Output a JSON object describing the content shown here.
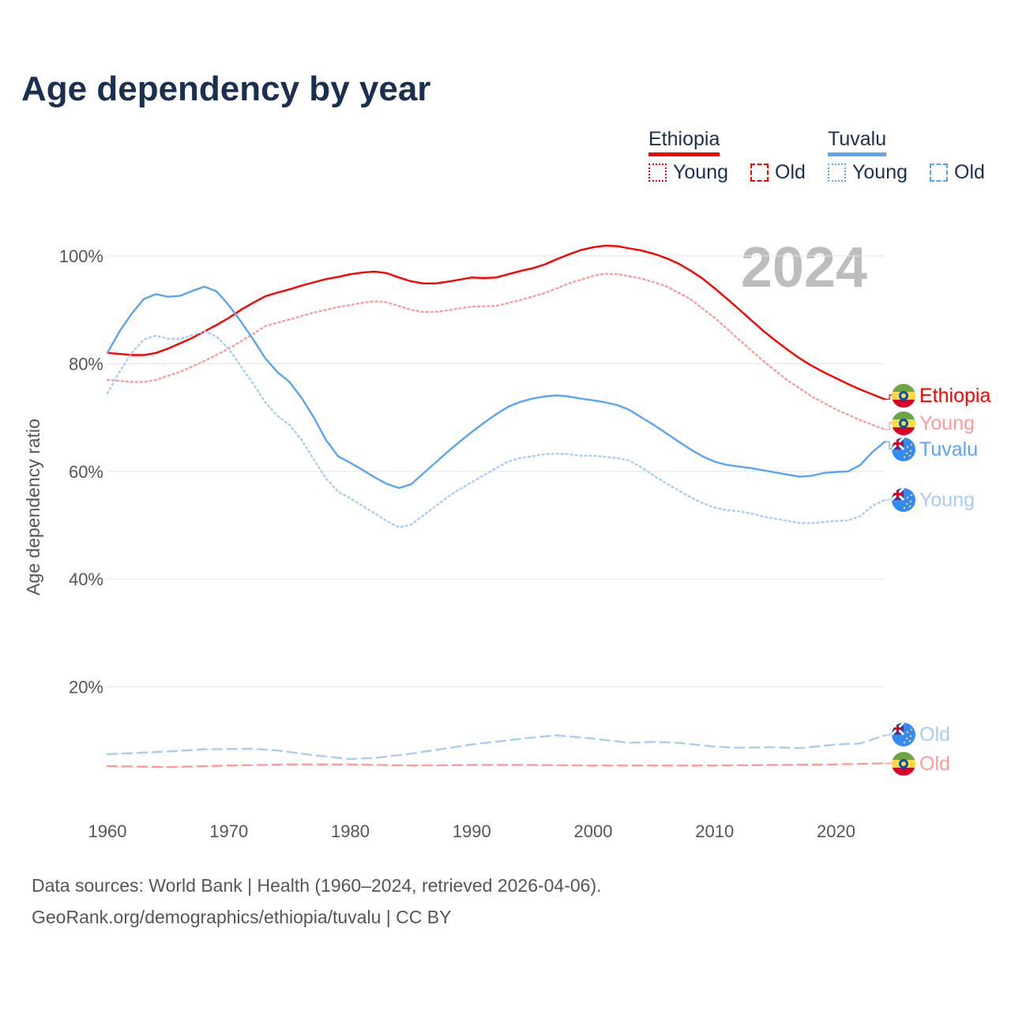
{
  "title": "Age dependency by year",
  "legend": {
    "countries": [
      {
        "name": "Ethiopia",
        "color": "#ff0000",
        "young_color": "#ff0000",
        "items": [
          "Young",
          "Old"
        ]
      },
      {
        "name": "Tuvalu",
        "color": "#5ba4ee",
        "young_color": "#5ba4ee",
        "items": [
          "Young",
          "Old"
        ]
      }
    ]
  },
  "year_watermark": "2024",
  "sources": {
    "line1": "Data sources: World Bank | Health (1960–2024, retrieved 2026-04-06).",
    "line2": "GeoRank.org/demographics/ethiopia/tuvalu | CC BY"
  },
  "chart_data": {
    "type": "line",
    "title": "Age dependency by year",
    "xlabel": "",
    "ylabel": "Age dependency ratio",
    "xlim": [
      1960,
      2024
    ],
    "ylim": [
      0,
      105
    ],
    "x_ticks": [
      "1960",
      "1970",
      "1980",
      "1990",
      "2000",
      "2010",
      "2020"
    ],
    "y_ticks": [
      "20%",
      "40%",
      "60%",
      "80%",
      "100%"
    ],
    "grid": true,
    "legend_position": "top-right",
    "series": [
      {
        "name": "Ethiopia",
        "label": "Ethiopia",
        "country": "ethiopia",
        "style": "solid",
        "color": "#ff0000",
        "points": [
          [
            1960,
            82
          ],
          [
            1961,
            81.8
          ],
          [
            1962,
            81.6
          ],
          [
            1963,
            81.6
          ],
          [
            1964,
            82
          ],
          [
            1965,
            82.8
          ],
          [
            1966,
            83.8
          ],
          [
            1967,
            84.8
          ],
          [
            1968,
            86
          ],
          [
            1969,
            87.2
          ],
          [
            1970,
            88.5
          ],
          [
            1971,
            90
          ],
          [
            1972,
            91.3
          ],
          [
            1973,
            92.5
          ],
          [
            1974,
            93.2
          ],
          [
            1975,
            93.8
          ],
          [
            1976,
            94.5
          ],
          [
            1977,
            95.1
          ],
          [
            1978,
            95.7
          ],
          [
            1979,
            96.1
          ],
          [
            1980,
            96.6
          ],
          [
            1981,
            96.9
          ],
          [
            1982,
            97.1
          ],
          [
            1983,
            96.8
          ],
          [
            1984,
            96
          ],
          [
            1985,
            95.3
          ],
          [
            1986,
            94.9
          ],
          [
            1987,
            94.9
          ],
          [
            1988,
            95.2
          ],
          [
            1989,
            95.6
          ],
          [
            1990,
            96
          ],
          [
            1991,
            95.9
          ],
          [
            1992,
            96
          ],
          [
            1993,
            96.6
          ],
          [
            1994,
            97.2
          ],
          [
            1995,
            97.7
          ],
          [
            1996,
            98.4
          ],
          [
            1997,
            99.4
          ],
          [
            1998,
            100.3
          ],
          [
            1999,
            101.1
          ],
          [
            2000,
            101.6
          ],
          [
            2001,
            101.9
          ],
          [
            2002,
            101.8
          ],
          [
            2003,
            101.4
          ],
          [
            2004,
            101
          ],
          [
            2005,
            100.4
          ],
          [
            2006,
            99.6
          ],
          [
            2007,
            98.6
          ],
          [
            2008,
            97.3
          ],
          [
            2009,
            95.8
          ],
          [
            2010,
            94
          ],
          [
            2011,
            92.1
          ],
          [
            2012,
            90.1
          ],
          [
            2013,
            88.1
          ],
          [
            2014,
            86.1
          ],
          [
            2015,
            84.3
          ],
          [
            2016,
            82.6
          ],
          [
            2017,
            81
          ],
          [
            2018,
            79.6
          ],
          [
            2019,
            78.4
          ],
          [
            2020,
            77.3
          ],
          [
            2021,
            76.2
          ],
          [
            2022,
            75.2
          ],
          [
            2023,
            74.3
          ],
          [
            2024,
            73.4
          ]
        ]
      },
      {
        "name": "Ethiopia Young",
        "label": "Young",
        "country": "ethiopia",
        "style": "dotted",
        "color": "#ff9a9a",
        "points": [
          [
            1960,
            77
          ],
          [
            1962,
            76.6
          ],
          [
            1963,
            76.6
          ],
          [
            1964,
            77
          ],
          [
            1966,
            78.5
          ],
          [
            1968,
            80.5
          ],
          [
            1970,
            82.8
          ],
          [
            1972,
            85.5
          ],
          [
            1973,
            87
          ],
          [
            1975,
            88.2
          ],
          [
            1977,
            89.5
          ],
          [
            1979,
            90.5
          ],
          [
            1981,
            91.3
          ],
          [
            1982,
            91.6
          ],
          [
            1983,
            91.4
          ],
          [
            1984,
            90.7
          ],
          [
            1985,
            90
          ],
          [
            1986,
            89.6
          ],
          [
            1987,
            89.6
          ],
          [
            1988,
            89.9
          ],
          [
            1990,
            90.6
          ],
          [
            1992,
            90.7
          ],
          [
            1994,
            91.8
          ],
          [
            1996,
            93.1
          ],
          [
            1998,
            94.9
          ],
          [
            2000,
            96.3
          ],
          [
            2001,
            96.7
          ],
          [
            2002,
            96.6
          ],
          [
            2004,
            95.8
          ],
          [
            2006,
            94.4
          ],
          [
            2008,
            92
          ],
          [
            2010,
            88.5
          ],
          [
            2012,
            84.5
          ],
          [
            2014,
            80.5
          ],
          [
            2016,
            76.9
          ],
          [
            2018,
            73.9
          ],
          [
            2020,
            71.5
          ],
          [
            2022,
            69.5
          ],
          [
            2024,
            67.8
          ]
        ]
      },
      {
        "name": "Tuvalu",
        "label": "Tuvalu",
        "country": "tuvalu",
        "style": "solid",
        "color": "#5ba4ee",
        "points": [
          [
            1960,
            82
          ],
          [
            1961,
            86
          ],
          [
            1962,
            89.3
          ],
          [
            1963,
            92
          ],
          [
            1964,
            92.9
          ],
          [
            1965,
            92.4
          ],
          [
            1966,
            92.6
          ],
          [
            1967,
            93.5
          ],
          [
            1968,
            94.3
          ],
          [
            1969,
            93.4
          ],
          [
            1970,
            90.8
          ],
          [
            1971,
            87.8
          ],
          [
            1972,
            84.5
          ],
          [
            1973,
            81
          ],
          [
            1974,
            78.4
          ],
          [
            1975,
            76.6
          ],
          [
            1976,
            73.6
          ],
          [
            1977,
            70
          ],
          [
            1978,
            65.8
          ],
          [
            1979,
            62.8
          ],
          [
            1980,
            61.6
          ],
          [
            1981,
            60.3
          ],
          [
            1982,
            58.9
          ],
          [
            1983,
            57.7
          ],
          [
            1984,
            56.9
          ],
          [
            1985,
            57.6
          ],
          [
            1986,
            59.6
          ],
          [
            1987,
            61.6
          ],
          [
            1988,
            63.6
          ],
          [
            1989,
            65.5
          ],
          [
            1990,
            67.3
          ],
          [
            1991,
            69
          ],
          [
            1992,
            70.6
          ],
          [
            1993,
            72
          ],
          [
            1994,
            72.9
          ],
          [
            1995,
            73.5
          ],
          [
            1996,
            73.9
          ],
          [
            1997,
            74.1
          ],
          [
            1998,
            73.9
          ],
          [
            1999,
            73.5
          ],
          [
            2000,
            73.2
          ],
          [
            2001,
            72.8
          ],
          [
            2002,
            72.3
          ],
          [
            2003,
            71.4
          ],
          [
            2004,
            70
          ],
          [
            2005,
            68.6
          ],
          [
            2006,
            67.1
          ],
          [
            2007,
            65.6
          ],
          [
            2008,
            64.1
          ],
          [
            2009,
            62.8
          ],
          [
            2010,
            61.8
          ],
          [
            2011,
            61.2
          ],
          [
            2012,
            60.9
          ],
          [
            2013,
            60.6
          ],
          [
            2014,
            60.2
          ],
          [
            2015,
            59.8
          ],
          [
            2016,
            59.4
          ],
          [
            2017,
            59
          ],
          [
            2018,
            59.2
          ],
          [
            2019,
            59.7
          ],
          [
            2020,
            59.9
          ],
          [
            2021,
            60
          ],
          [
            2022,
            61.2
          ],
          [
            2023,
            63.6
          ],
          [
            2024,
            65.5
          ]
        ]
      },
      {
        "name": "Tuvalu Young",
        "label": "Young",
        "country": "tuvalu",
        "style": "dotted",
        "color": "#a8cdf5",
        "points": [
          [
            1960,
            74.5
          ],
          [
            1961,
            78.5
          ],
          [
            1962,
            82
          ],
          [
            1963,
            84.5
          ],
          [
            1964,
            85.2
          ],
          [
            1965,
            84.6
          ],
          [
            1966,
            84.6
          ],
          [
            1967,
            85.3
          ],
          [
            1968,
            86
          ],
          [
            1969,
            85
          ],
          [
            1970,
            82.7
          ],
          [
            1971,
            79.5
          ],
          [
            1972,
            76.3
          ],
          [
            1973,
            72.8
          ],
          [
            1974,
            70.3
          ],
          [
            1975,
            68.6
          ],
          [
            1976,
            65.8
          ],
          [
            1977,
            62.2
          ],
          [
            1978,
            58.7
          ],
          [
            1979,
            56.2
          ],
          [
            1980,
            55
          ],
          [
            1981,
            53.6
          ],
          [
            1982,
            52.2
          ],
          [
            1983,
            50.8
          ],
          [
            1984,
            49.6
          ],
          [
            1985,
            50.1
          ],
          [
            1986,
            51.8
          ],
          [
            1987,
            53.5
          ],
          [
            1988,
            55.2
          ],
          [
            1989,
            56.7
          ],
          [
            1990,
            58
          ],
          [
            1991,
            59.3
          ],
          [
            1992,
            60.6
          ],
          [
            1993,
            61.8
          ],
          [
            1994,
            62.5
          ],
          [
            1995,
            62.8
          ],
          [
            1996,
            63.2
          ],
          [
            1997,
            63.3
          ],
          [
            1998,
            63.2
          ],
          [
            1999,
            62.9
          ],
          [
            2000,
            62.9
          ],
          [
            2001,
            62.7
          ],
          [
            2002,
            62.5
          ],
          [
            2003,
            62
          ],
          [
            2004,
            60.7
          ],
          [
            2005,
            59.2
          ],
          [
            2006,
            57.8
          ],
          [
            2007,
            56.5
          ],
          [
            2008,
            55.2
          ],
          [
            2009,
            54.1
          ],
          [
            2010,
            53.3
          ],
          [
            2011,
            52.8
          ],
          [
            2012,
            52.6
          ],
          [
            2013,
            52.2
          ],
          [
            2014,
            51.6
          ],
          [
            2015,
            51.2
          ],
          [
            2016,
            50.8
          ],
          [
            2017,
            50.4
          ],
          [
            2018,
            50.4
          ],
          [
            2019,
            50.6
          ],
          [
            2020,
            50.8
          ],
          [
            2021,
            50.9
          ],
          [
            2022,
            51.7
          ],
          [
            2023,
            53.6
          ],
          [
            2024,
            54.7
          ]
        ]
      },
      {
        "name": "Tuvalu Old",
        "label": "Old",
        "country": "tuvalu",
        "style": "dashed",
        "color": "#a8cdf5",
        "points": [
          [
            1960,
            7.5
          ],
          [
            1965,
            8
          ],
          [
            1968,
            8.4
          ],
          [
            1972,
            8.5
          ],
          [
            1974,
            8.2
          ],
          [
            1977,
            7.3
          ],
          [
            1980,
            6.6
          ],
          [
            1982,
            6.8
          ],
          [
            1985,
            7.6
          ],
          [
            1990,
            9.3
          ],
          [
            1995,
            10.6
          ],
          [
            1997,
            11
          ],
          [
            2000,
            10.4
          ],
          [
            2003,
            9.6
          ],
          [
            2005,
            9.8
          ],
          [
            2007,
            9.6
          ],
          [
            2010,
            8.9
          ],
          [
            2012,
            8.7
          ],
          [
            2015,
            8.8
          ],
          [
            2017,
            8.6
          ],
          [
            2020,
            9.3
          ],
          [
            2022,
            9.5
          ],
          [
            2024,
            11
          ]
        ]
      },
      {
        "name": "Ethiopia Old",
        "label": "Old",
        "country": "ethiopia",
        "style": "dashed",
        "color": "#ff9a9a",
        "points": [
          [
            1960,
            5.3
          ],
          [
            1965,
            5.1
          ],
          [
            1970,
            5.4
          ],
          [
            1975,
            5.6
          ],
          [
            1980,
            5.6
          ],
          [
            1985,
            5.4
          ],
          [
            1990,
            5.5
          ],
          [
            1995,
            5.5
          ],
          [
            2000,
            5.4
          ],
          [
            2005,
            5.4
          ],
          [
            2010,
            5.4
          ],
          [
            2015,
            5.5
          ],
          [
            2020,
            5.6
          ],
          [
            2024,
            5.8
          ]
        ]
      }
    ]
  }
}
